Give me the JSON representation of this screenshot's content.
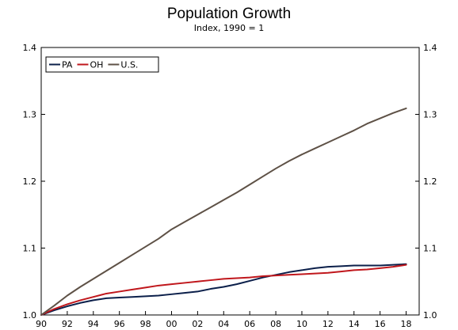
{
  "chart_data": {
    "type": "line",
    "title": "Population Growth",
    "subtitle": "Index, 1990 = 1",
    "xlabel": "",
    "ylabel": "",
    "x": [
      1990,
      1991,
      1992,
      1993,
      1994,
      1995,
      1996,
      1997,
      1998,
      1999,
      2000,
      2001,
      2002,
      2003,
      2004,
      2005,
      2006,
      2007,
      2008,
      2009,
      2010,
      2011,
      2012,
      2013,
      2014,
      2015,
      2016,
      2017,
      2018
    ],
    "x_ticks": [
      1990,
      1992,
      1994,
      1996,
      1998,
      2000,
      2002,
      2004,
      2006,
      2008,
      2010,
      2012,
      2014,
      2016,
      2018
    ],
    "x_tick_labels": [
      "90",
      "92",
      "94",
      "96",
      "98",
      "00",
      "02",
      "04",
      "06",
      "08",
      "10",
      "12",
      "14",
      "16",
      "18"
    ],
    "xlim": [
      1990,
      2019
    ],
    "ylim": [
      1.0,
      1.4
    ],
    "y_ticks": [
      1.0,
      1.1,
      1.2,
      1.3,
      1.4
    ],
    "y_tick_labels": [
      "1.0",
      "1.1",
      "1.2",
      "1.3",
      "1.4"
    ],
    "grid": false,
    "legend_position": "top-left",
    "series": [
      {
        "name": "PA",
        "color": "#0b1f4a",
        "values": [
          1.0,
          1.007,
          1.013,
          1.018,
          1.022,
          1.025,
          1.026,
          1.027,
          1.028,
          1.029,
          1.031,
          1.033,
          1.035,
          1.039,
          1.042,
          1.046,
          1.051,
          1.056,
          1.06,
          1.064,
          1.067,
          1.07,
          1.072,
          1.073,
          1.074,
          1.074,
          1.074,
          1.075,
          1.076
        ]
      },
      {
        "name": "OH",
        "color": "#c0171c",
        "values": [
          1.0,
          1.009,
          1.016,
          1.022,
          1.027,
          1.032,
          1.035,
          1.038,
          1.041,
          1.044,
          1.046,
          1.048,
          1.05,
          1.052,
          1.054,
          1.055,
          1.056,
          1.058,
          1.059,
          1.06,
          1.061,
          1.062,
          1.063,
          1.065,
          1.067,
          1.068,
          1.07,
          1.072,
          1.075
        ]
      },
      {
        "name": "U.S.",
        "color": "#5e5146",
        "values": [
          1.0,
          1.014,
          1.029,
          1.042,
          1.054,
          1.066,
          1.078,
          1.09,
          1.102,
          1.114,
          1.128,
          1.139,
          1.15,
          1.161,
          1.172,
          1.183,
          1.195,
          1.207,
          1.219,
          1.23,
          1.24,
          1.249,
          1.258,
          1.267,
          1.276,
          1.286,
          1.294,
          1.302,
          1.309
        ]
      }
    ]
  }
}
